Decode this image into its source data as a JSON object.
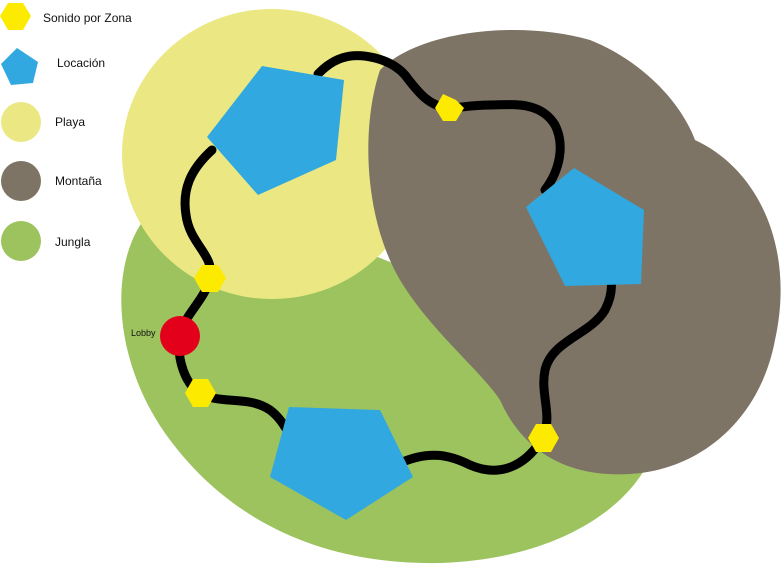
{
  "colors": {
    "beach": "#ebe884",
    "mountain": "#7e7465",
    "jungle": "#9dc35e",
    "location": "#31a8df",
    "zone_sound": "#fcea00",
    "lobby": "#e2001a",
    "path": "#000000"
  },
  "legend": [
    {
      "label": "Sonido por Zona",
      "icon": "hexagon-icon",
      "color": "#fcea00"
    },
    {
      "label": "Locación",
      "icon": "pentagon-icon",
      "color": "#31a8df"
    },
    {
      "label": "Playa",
      "icon": "circle-icon",
      "color": "#ebe884"
    },
    {
      "label": "Montaña",
      "icon": "circle-icon",
      "color": "#7e7465"
    },
    {
      "label": "Jungla",
      "icon": "circle-icon",
      "color": "#9dc35e"
    }
  ],
  "lobby": {
    "label": "Lobby"
  }
}
